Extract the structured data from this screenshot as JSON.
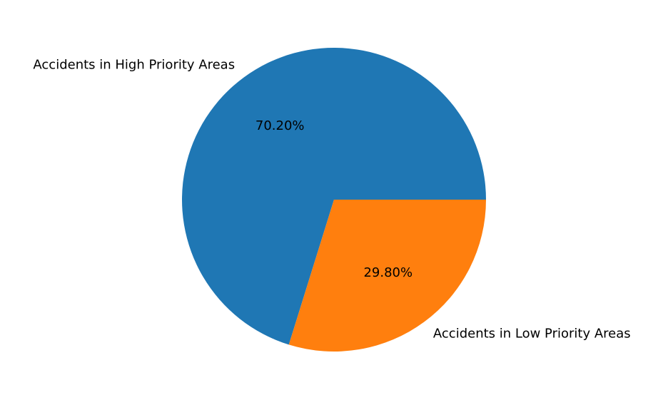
{
  "chart_data": {
    "type": "pie",
    "title": "",
    "categories": [
      "Accidents in High Priority Areas",
      "Accidents in Low Priority Areas"
    ],
    "values": [
      70.2,
      29.8
    ],
    "percent_labels": [
      "70.20%",
      "29.80%"
    ],
    "colors": [
      "#1f77b4",
      "#ff7f0e"
    ],
    "start_angle_deg": 0,
    "direction": "counterclockwise",
    "legend": "none"
  }
}
